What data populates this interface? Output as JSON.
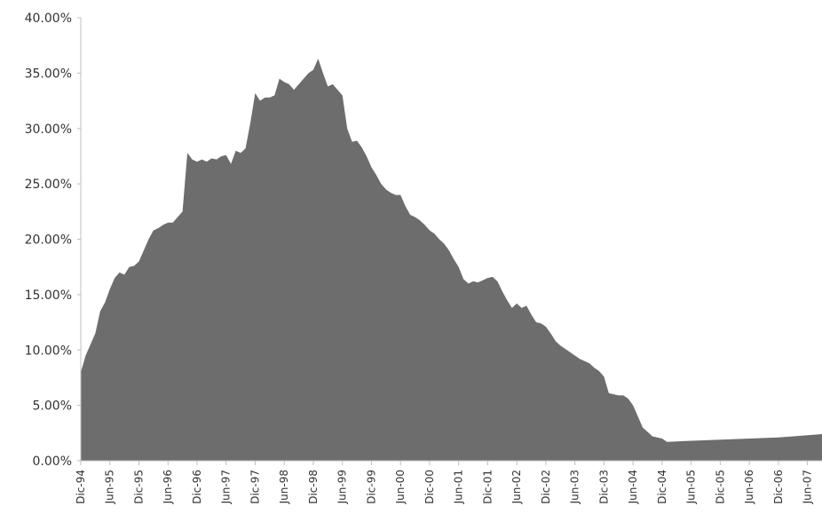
{
  "chart_data": {
    "type": "area",
    "title": "",
    "xlabel": "",
    "ylabel": "",
    "ylim": [
      0,
      40
    ],
    "y_ticks": [
      {
        "value": 0,
        "label": "0.00%"
      },
      {
        "value": 5,
        "label": "5.00%"
      },
      {
        "value": 10,
        "label": "10.00%"
      },
      {
        "value": 15,
        "label": "15.00%"
      },
      {
        "value": 20,
        "label": "20.00%"
      },
      {
        "value": 25,
        "label": "25.00%"
      },
      {
        "value": 30,
        "label": "30.00%"
      },
      {
        "value": 35,
        "label": "35.00%"
      },
      {
        "value": 40,
        "label": "40.00%"
      }
    ],
    "x_ticks": [
      {
        "date": "1994-12",
        "label": "Dic-94"
      },
      {
        "date": "1995-06",
        "label": "Jun-95"
      },
      {
        "date": "1995-12",
        "label": "Dic-95"
      },
      {
        "date": "1996-06",
        "label": "Jun-96"
      },
      {
        "date": "1996-12",
        "label": "Dic-96"
      },
      {
        "date": "1997-06",
        "label": "Jun-97"
      },
      {
        "date": "1997-12",
        "label": "Dic-97"
      },
      {
        "date": "1998-06",
        "label": "Jun-98"
      },
      {
        "date": "1998-12",
        "label": "Dic-98"
      },
      {
        "date": "1999-06",
        "label": "Jun-99"
      },
      {
        "date": "1999-12",
        "label": "Dic-99"
      },
      {
        "date": "2000-06",
        "label": "Jun-00"
      },
      {
        "date": "2000-12",
        "label": "Dic-00"
      },
      {
        "date": "2001-06",
        "label": "Jun-01"
      },
      {
        "date": "2001-12",
        "label": "Dic-01"
      },
      {
        "date": "2002-06",
        "label": "Jun-02"
      },
      {
        "date": "2002-12",
        "label": "Dic-02"
      },
      {
        "date": "2003-06",
        "label": "Jun-03"
      },
      {
        "date": "2003-12",
        "label": "Dic-03"
      },
      {
        "date": "2004-06",
        "label": "Jun-04"
      },
      {
        "date": "2004-12",
        "label": "Dic-04"
      },
      {
        "date": "2005-06",
        "label": "Jun-05"
      },
      {
        "date": "2005-12",
        "label": "Dic-05"
      },
      {
        "date": "2006-06",
        "label": "Jun-06"
      },
      {
        "date": "2006-12",
        "label": "Dic-06"
      },
      {
        "date": "2007-06",
        "label": "Jun-07"
      }
    ],
    "x_range": [
      "1994-12",
      "2007-09"
    ],
    "grid": false,
    "legend": "none",
    "series": [
      {
        "color": "#6d6d6d",
        "points": [
          [
            "1994-12",
            8.0
          ],
          [
            "1995-01",
            9.5
          ],
          [
            "1995-02",
            10.5
          ],
          [
            "1995-03",
            11.5
          ],
          [
            "1995-04",
            13.5
          ],
          [
            "1995-05",
            14.3
          ],
          [
            "1995-06",
            15.5
          ],
          [
            "1995-07",
            16.5
          ],
          [
            "1995-08",
            17.0
          ],
          [
            "1995-09",
            16.8
          ],
          [
            "1995-10",
            17.5
          ],
          [
            "1995-11",
            17.6
          ],
          [
            "1995-12",
            18.0
          ],
          [
            "1996-01",
            19.0
          ],
          [
            "1996-02",
            20.0
          ],
          [
            "1996-03",
            20.8
          ],
          [
            "1996-04",
            21.0
          ],
          [
            "1996-05",
            21.3
          ],
          [
            "1996-06",
            21.5
          ],
          [
            "1996-07",
            21.5
          ],
          [
            "1996-08",
            22.0
          ],
          [
            "1996-09",
            22.5
          ],
          [
            "1996-10",
            27.8
          ],
          [
            "1996-11",
            27.2
          ],
          [
            "1996-12",
            27.0
          ],
          [
            "1997-01",
            27.2
          ],
          [
            "1997-02",
            27.0
          ],
          [
            "1997-03",
            27.3
          ],
          [
            "1997-04",
            27.2
          ],
          [
            "1997-05",
            27.5
          ],
          [
            "1997-06",
            27.6
          ],
          [
            "1997-07",
            26.8
          ],
          [
            "1997-08",
            28.0
          ],
          [
            "1997-09",
            27.8
          ],
          [
            "1997-10",
            28.2
          ],
          [
            "1997-11",
            30.5
          ],
          [
            "1997-12",
            33.2
          ],
          [
            "1998-01",
            32.5
          ],
          [
            "1998-02",
            32.8
          ],
          [
            "1998-03",
            32.8
          ],
          [
            "1998-04",
            33.0
          ],
          [
            "1998-05",
            34.5
          ],
          [
            "1998-06",
            34.2
          ],
          [
            "1998-07",
            34.0
          ],
          [
            "1998-08",
            33.5
          ],
          [
            "1998-09",
            34.0
          ],
          [
            "1998-10",
            34.5
          ],
          [
            "1998-11",
            35.0
          ],
          [
            "1998-12",
            35.3
          ],
          [
            "1999-01",
            36.3
          ],
          [
            "1999-02",
            35.0
          ],
          [
            "1999-03",
            33.8
          ],
          [
            "1999-04",
            34.0
          ],
          [
            "1999-05",
            33.5
          ],
          [
            "1999-06",
            33.0
          ],
          [
            "1999-07",
            30.0
          ],
          [
            "1999-08",
            28.8
          ],
          [
            "1999-09",
            28.9
          ],
          [
            "1999-10",
            28.3
          ],
          [
            "1999-11",
            27.5
          ],
          [
            "1999-12",
            26.5
          ],
          [
            "2000-01",
            25.8
          ],
          [
            "2000-02",
            25.0
          ],
          [
            "2000-03",
            24.5
          ],
          [
            "2000-04",
            24.2
          ],
          [
            "2000-05",
            24.0
          ],
          [
            "2000-06",
            24.0
          ],
          [
            "2000-07",
            23.0
          ],
          [
            "2000-08",
            22.2
          ],
          [
            "2000-09",
            22.0
          ],
          [
            "2000-10",
            21.7
          ],
          [
            "2000-11",
            21.3
          ],
          [
            "2000-12",
            20.8
          ],
          [
            "2001-01",
            20.5
          ],
          [
            "2001-02",
            20.0
          ],
          [
            "2001-03",
            19.6
          ],
          [
            "2001-04",
            19.0
          ],
          [
            "2001-05",
            18.2
          ],
          [
            "2001-06",
            17.5
          ],
          [
            "2001-07",
            16.4
          ],
          [
            "2001-08",
            16.0
          ],
          [
            "2001-09",
            16.2
          ],
          [
            "2001-10",
            16.1
          ],
          [
            "2001-11",
            16.3
          ],
          [
            "2001-12",
            16.5
          ],
          [
            "2002-01",
            16.6
          ],
          [
            "2002-02",
            16.2
          ],
          [
            "2002-03",
            15.3
          ],
          [
            "2002-04",
            14.5
          ],
          [
            "2002-05",
            13.8
          ],
          [
            "2002-06",
            14.2
          ],
          [
            "2002-07",
            13.8
          ],
          [
            "2002-08",
            14.0
          ],
          [
            "2002-09",
            13.2
          ],
          [
            "2002-10",
            12.5
          ],
          [
            "2002-11",
            12.4
          ],
          [
            "2002-12",
            12.1
          ],
          [
            "2003-01",
            11.5
          ],
          [
            "2003-02",
            10.8
          ],
          [
            "2003-03",
            10.4
          ],
          [
            "2003-04",
            10.1
          ],
          [
            "2003-05",
            9.8
          ],
          [
            "2003-06",
            9.5
          ],
          [
            "2003-07",
            9.2
          ],
          [
            "2003-08",
            9.0
          ],
          [
            "2003-09",
            8.8
          ],
          [
            "2003-10",
            8.4
          ],
          [
            "2003-11",
            8.1
          ],
          [
            "2003-12",
            7.6
          ],
          [
            "2004-01",
            6.1
          ],
          [
            "2004-02",
            6.0
          ],
          [
            "2004-03",
            5.9
          ],
          [
            "2004-04",
            5.9
          ],
          [
            "2004-05",
            5.6
          ],
          [
            "2004-06",
            5.0
          ],
          [
            "2004-07",
            4.0
          ],
          [
            "2004-08",
            3.0
          ],
          [
            "2004-09",
            2.6
          ],
          [
            "2004-10",
            2.2
          ],
          [
            "2004-11",
            2.1
          ],
          [
            "2004-12",
            2.0
          ],
          [
            "2005-01",
            1.7
          ],
          [
            "2005-06",
            1.8
          ],
          [
            "2005-12",
            1.9
          ],
          [
            "2006-06",
            2.0
          ],
          [
            "2006-12",
            2.1
          ],
          [
            "2007-06",
            2.3
          ],
          [
            "2007-09",
            2.4
          ]
        ]
      }
    ]
  }
}
